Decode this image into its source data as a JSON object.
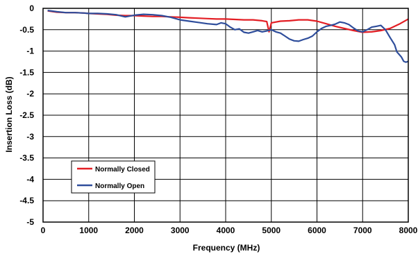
{
  "chart_data": {
    "type": "line",
    "title": "",
    "xlabel": "Frequency (MHz)",
    "ylabel": "Insertion Loss (dB)",
    "xlim": [
      0,
      8000
    ],
    "ylim": [
      -5,
      0
    ],
    "x_ticks": [
      0,
      1000,
      2000,
      3000,
      4000,
      5000,
      6000,
      7000,
      8000
    ],
    "y_ticks": [
      0,
      -0.5,
      -1,
      -1.5,
      -2,
      -2.5,
      -3,
      -3.5,
      -4,
      -4.5,
      -5
    ],
    "x_tick_labels": [
      "0",
      "1000",
      "2000",
      "3000",
      "4000",
      "5000",
      "6000",
      "7000",
      "8000"
    ],
    "y_tick_labels": [
      "0",
      "-0.5",
      "-1",
      "-1.5",
      "-2",
      "-2.5",
      "-3",
      "-3.5",
      "-4",
      "-4.5",
      "-5"
    ],
    "grid": true,
    "legend_position": "lower-left",
    "series": [
      {
        "name": "Normally Closed",
        "color": "#e31e24",
        "points": [
          [
            100,
            -0.06
          ],
          [
            300,
            -0.09
          ],
          [
            500,
            -0.1
          ],
          [
            700,
            -0.1
          ],
          [
            900,
            -0.11
          ],
          [
            1000,
            -0.12
          ],
          [
            1200,
            -0.13
          ],
          [
            1400,
            -0.14
          ],
          [
            1600,
            -0.16
          ],
          [
            1800,
            -0.17
          ],
          [
            2000,
            -0.17
          ],
          [
            2200,
            -0.18
          ],
          [
            2400,
            -0.19
          ],
          [
            2600,
            -0.19
          ],
          [
            2800,
            -0.2
          ],
          [
            3000,
            -0.21
          ],
          [
            3200,
            -0.22
          ],
          [
            3400,
            -0.23
          ],
          [
            3600,
            -0.24
          ],
          [
            3800,
            -0.25
          ],
          [
            4000,
            -0.25
          ],
          [
            4200,
            -0.26
          ],
          [
            4400,
            -0.27
          ],
          [
            4600,
            -0.27
          ],
          [
            4800,
            -0.29
          ],
          [
            4900,
            -0.31
          ],
          [
            4950,
            -0.55
          ],
          [
            5000,
            -0.34
          ],
          [
            5200,
            -0.3
          ],
          [
            5400,
            -0.29
          ],
          [
            5600,
            -0.27
          ],
          [
            5800,
            -0.27
          ],
          [
            6000,
            -0.3
          ],
          [
            6200,
            -0.36
          ],
          [
            6400,
            -0.42
          ],
          [
            6600,
            -0.47
          ],
          [
            6800,
            -0.52
          ],
          [
            7000,
            -0.56
          ],
          [
            7200,
            -0.55
          ],
          [
            7400,
            -0.52
          ],
          [
            7600,
            -0.47
          ],
          [
            7800,
            -0.37
          ],
          [
            8000,
            -0.25
          ]
        ]
      },
      {
        "name": "Normally Open",
        "color": "#2e4d9b",
        "points": [
          [
            100,
            -0.05
          ],
          [
            300,
            -0.08
          ],
          [
            500,
            -0.1
          ],
          [
            700,
            -0.1
          ],
          [
            900,
            -0.11
          ],
          [
            1000,
            -0.12
          ],
          [
            1200,
            -0.12
          ],
          [
            1400,
            -0.13
          ],
          [
            1600,
            -0.15
          ],
          [
            1800,
            -0.2
          ],
          [
            2000,
            -0.16
          ],
          [
            2200,
            -0.14
          ],
          [
            2400,
            -0.15
          ],
          [
            2600,
            -0.17
          ],
          [
            2800,
            -0.21
          ],
          [
            3000,
            -0.27
          ],
          [
            3200,
            -0.3
          ],
          [
            3400,
            -0.33
          ],
          [
            3600,
            -0.36
          ],
          [
            3800,
            -0.38
          ],
          [
            3900,
            -0.34
          ],
          [
            4000,
            -0.36
          ],
          [
            4100,
            -0.44
          ],
          [
            4200,
            -0.5
          ],
          [
            4300,
            -0.48
          ],
          [
            4400,
            -0.56
          ],
          [
            4500,
            -0.58
          ],
          [
            4600,
            -0.55
          ],
          [
            4700,
            -0.52
          ],
          [
            4800,
            -0.55
          ],
          [
            4900,
            -0.53
          ],
          [
            5000,
            -0.5
          ],
          [
            5100,
            -0.55
          ],
          [
            5200,
            -0.58
          ],
          [
            5300,
            -0.65
          ],
          [
            5400,
            -0.72
          ],
          [
            5500,
            -0.76
          ],
          [
            5600,
            -0.77
          ],
          [
            5700,
            -0.73
          ],
          [
            5800,
            -0.7
          ],
          [
            5900,
            -0.65
          ],
          [
            6000,
            -0.55
          ],
          [
            6100,
            -0.47
          ],
          [
            6200,
            -0.42
          ],
          [
            6300,
            -0.4
          ],
          [
            6400,
            -0.37
          ],
          [
            6500,
            -0.32
          ],
          [
            6600,
            -0.34
          ],
          [
            6700,
            -0.38
          ],
          [
            6800,
            -0.46
          ],
          [
            6900,
            -0.53
          ],
          [
            7000,
            -0.55
          ],
          [
            7100,
            -0.5
          ],
          [
            7200,
            -0.44
          ],
          [
            7300,
            -0.42
          ],
          [
            7400,
            -0.4
          ],
          [
            7500,
            -0.5
          ],
          [
            7600,
            -0.68
          ],
          [
            7700,
            -0.85
          ],
          [
            7750,
            -1.02
          ],
          [
            7800,
            -1.08
          ],
          [
            7850,
            -1.14
          ],
          [
            7900,
            -1.24
          ],
          [
            7950,
            -1.26
          ],
          [
            8000,
            -1.24
          ]
        ]
      }
    ]
  }
}
